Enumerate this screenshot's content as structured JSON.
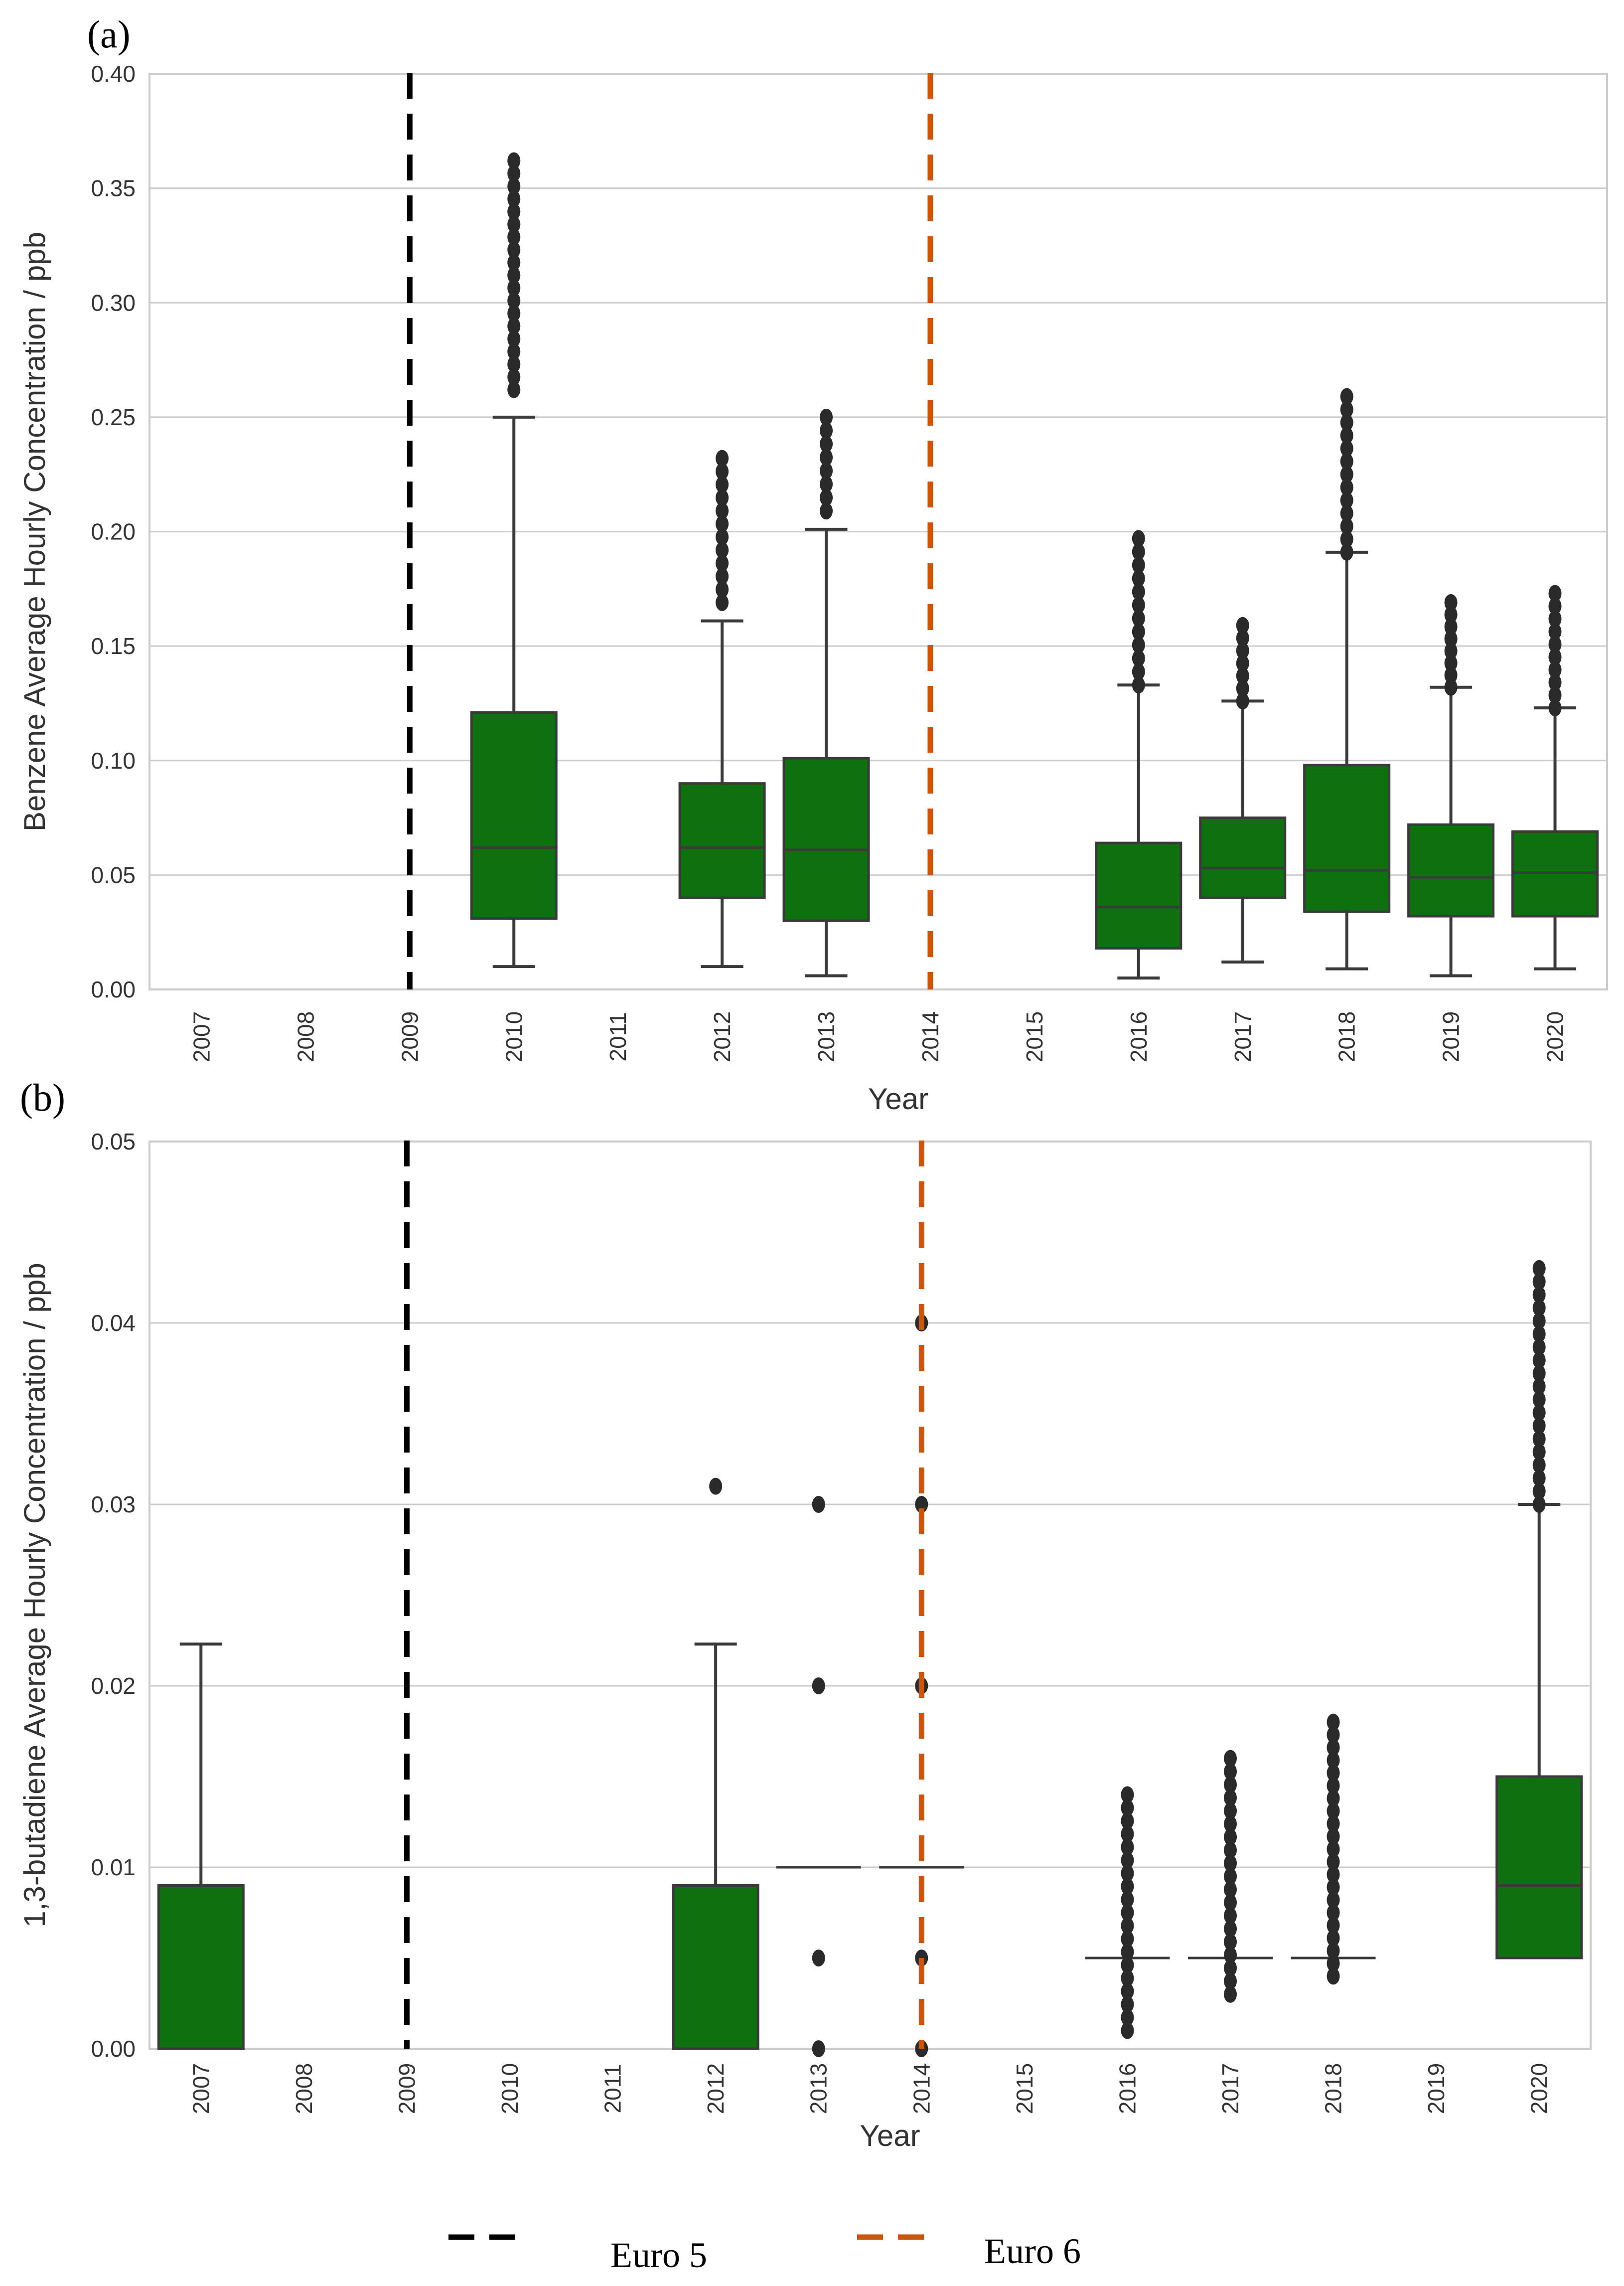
{
  "colors": {
    "box": "#0e700e",
    "line": "#3a3a3a",
    "grid": "#cccccc",
    "frame": "#cccccc",
    "euro5": "#000000",
    "euro6": "#c8560f"
  },
  "chart_data": [
    {
      "type": "box",
      "panel_label": "(a)",
      "xlabel": "Year",
      "ylabel": "Benzene Average Hourly Concentration / ppb",
      "categories": [
        "2007",
        "2008",
        "2009",
        "2010",
        "2011",
        "2012",
        "2013",
        "2014",
        "2015",
        "2016",
        "2017",
        "2018",
        "2019",
        "2020"
      ],
      "ylim": [
        0,
        0.4
      ],
      "yticks": [
        "0.00",
        "0.05",
        "0.10",
        "0.15",
        "0.20",
        "0.25",
        "0.30",
        "0.35",
        "0.40"
      ],
      "grid": true,
      "vlines": [
        {
          "name": "Euro 5",
          "x": "2009"
        },
        {
          "name": "Euro 6",
          "x": "2014"
        }
      ],
      "boxes": [
        {
          "year": "2010",
          "q1": 0.031,
          "median": 0.062,
          "q3": 0.121,
          "whisker_low": 0.01,
          "whisker_high": 0.25,
          "outliers_min": 0.262,
          "outliers_max": 0.362
        },
        {
          "year": "2012",
          "q1": 0.04,
          "median": 0.062,
          "q3": 0.09,
          "whisker_low": 0.01,
          "whisker_high": 0.161,
          "outliers_min": 0.169,
          "outliers_max": 0.232
        },
        {
          "year": "2013",
          "q1": 0.03,
          "median": 0.061,
          "q3": 0.101,
          "whisker_low": 0.006,
          "whisker_high": 0.201,
          "outliers_min": 0.209,
          "outliers_max": 0.25
        },
        {
          "year": "2016",
          "q1": 0.018,
          "median": 0.036,
          "q3": 0.064,
          "whisker_low": 0.005,
          "whisker_high": 0.133,
          "outliers_min": 0.133,
          "outliers_max": 0.197
        },
        {
          "year": "2017",
          "q1": 0.04,
          "median": 0.053,
          "q3": 0.075,
          "whisker_low": 0.012,
          "whisker_high": 0.126,
          "outliers_min": 0.126,
          "outliers_max": 0.159
        },
        {
          "year": "2018",
          "q1": 0.034,
          "median": 0.052,
          "q3": 0.098,
          "whisker_low": 0.009,
          "whisker_high": 0.191,
          "outliers_min": 0.191,
          "outliers_max": 0.259
        },
        {
          "year": "2019",
          "q1": 0.032,
          "median": 0.049,
          "q3": 0.072,
          "whisker_low": 0.006,
          "whisker_high": 0.132,
          "outliers_min": 0.132,
          "outliers_max": 0.169
        },
        {
          "year": "2020",
          "q1": 0.032,
          "median": 0.051,
          "q3": 0.069,
          "whisker_low": 0.009,
          "whisker_high": 0.123,
          "outliers_min": 0.123,
          "outliers_max": 0.173
        }
      ]
    },
    {
      "type": "box",
      "panel_label": "(b)",
      "xlabel": "Year",
      "ylabel": "1,3-butadiene Average Hourly Concentration / ppb",
      "categories": [
        "2007",
        "2008",
        "2009",
        "2010",
        "2011",
        "2012",
        "2013",
        "2014",
        "2015",
        "2016",
        "2017",
        "2018",
        "2019",
        "2020"
      ],
      "ylim": [
        0,
        0.05
      ],
      "yticks": [
        "0.00",
        "0.01",
        "0.02",
        "0.03",
        "0.04",
        "0.05"
      ],
      "grid": true,
      "vlines": [
        {
          "name": "Euro 5",
          "x": "2009"
        },
        {
          "name": "Euro 6",
          "x": "2014"
        }
      ],
      "boxes": [
        {
          "year": "2007",
          "q1": 0.0,
          "median": 0.009,
          "q3": 0.009,
          "whisker_low": 0.0,
          "whisker_high": 0.0223,
          "outliers": []
        },
        {
          "year": "2012",
          "q1": 0.0,
          "median": 0.009,
          "q3": 0.009,
          "whisker_low": 0.0,
          "whisker_high": 0.0223,
          "outliers": [
            0.031
          ]
        },
        {
          "year": "2013",
          "q1": 0.01,
          "median": 0.01,
          "q3": 0.01,
          "whisker_low": 0.01,
          "whisker_high": 0.01,
          "outliers": [
            0.0,
            0.005,
            0.02,
            0.03
          ]
        },
        {
          "year": "2014",
          "q1": 0.01,
          "median": 0.01,
          "q3": 0.01,
          "whisker_low": 0.01,
          "whisker_high": 0.01,
          "outliers": [
            0.0,
            0.005,
            0.02,
            0.03,
            0.04
          ]
        },
        {
          "year": "2016",
          "q1": 0.005,
          "median": 0.005,
          "q3": 0.005,
          "whisker_low": 0.005,
          "whisker_high": 0.005,
          "outliers_min": 0.001,
          "outliers_max": 0.014
        },
        {
          "year": "2017",
          "q1": 0.005,
          "median": 0.005,
          "q3": 0.005,
          "whisker_low": 0.005,
          "whisker_high": 0.005,
          "outliers_min": 0.003,
          "outliers_max": 0.016
        },
        {
          "year": "2018",
          "q1": 0.005,
          "median": 0.005,
          "q3": 0.005,
          "whisker_low": 0.005,
          "whisker_high": 0.005,
          "outliers_min": 0.004,
          "outliers_max": 0.018
        },
        {
          "year": "2020",
          "q1": 0.005,
          "median": 0.009,
          "q3": 0.015,
          "whisker_low": 0.005,
          "whisker_high": 0.03,
          "outliers_min": 0.03,
          "outliers_max": 0.043
        }
      ]
    }
  ],
  "legend": [
    {
      "label": "Euro 5",
      "color": "#000000"
    },
    {
      "label": "Euro 6",
      "color": "#c8560f"
    }
  ]
}
